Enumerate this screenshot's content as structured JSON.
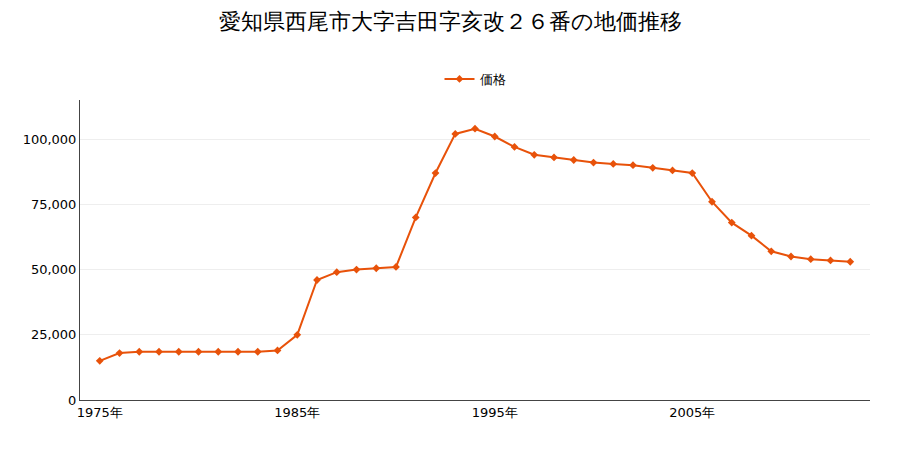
{
  "chart_data": {
    "type": "line",
    "title": "愛知県西尾市大字吉田字亥改２６番の地価推移",
    "x": [
      1975,
      1976,
      1977,
      1978,
      1979,
      1980,
      1981,
      1982,
      1983,
      1984,
      1985,
      1986,
      1987,
      1988,
      1989,
      1990,
      1991,
      1992,
      1993,
      1994,
      1995,
      1996,
      1997,
      1998,
      1999,
      2000,
      2001,
      2002,
      2003,
      2004,
      2005,
      2006,
      2007,
      2008,
      2009,
      2010,
      2011,
      2012,
      2013
    ],
    "series": [
      {
        "name": "価格",
        "color": "#E8520A",
        "marker": "diamond",
        "values": [
          15000,
          18000,
          18500,
          18500,
          18500,
          18500,
          18500,
          18500,
          18500,
          19000,
          25000,
          46000,
          49000,
          50000,
          50500,
          51000,
          70000,
          87000,
          102000,
          104000,
          101000,
          97000,
          94000,
          93000,
          92000,
          91000,
          90500,
          90000,
          89000,
          88000,
          87000,
          76000,
          68000,
          63000,
          57000,
          55000,
          54000,
          53500,
          53000
        ]
      }
    ],
    "xlim": [
      1974,
      2014
    ],
    "xticks": [
      {
        "value": 1975,
        "label": "1975年"
      },
      {
        "value": 1985,
        "label": "1985年"
      },
      {
        "value": 1995,
        "label": "1995年"
      },
      {
        "value": 2005,
        "label": "2005年"
      }
    ],
    "ylim": [
      0,
      115000
    ],
    "yticks": [
      0,
      {
        "value": 25000,
        "label": "25,000"
      },
      {
        "value": 50000,
        "label": "50,000"
      },
      {
        "value": 75000,
        "label": "75,000"
      },
      {
        "value": 100000,
        "label": "100,000"
      }
    ],
    "grid": true,
    "legend": "top"
  }
}
